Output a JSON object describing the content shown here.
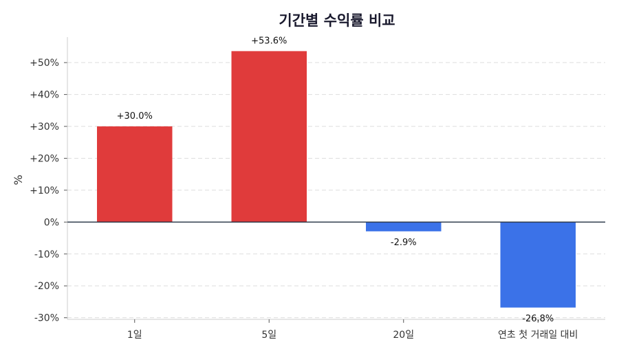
{
  "chart_data": {
    "type": "bar",
    "title": "기간별 수익률 비교",
    "ylabel": "%",
    "xlabel": "",
    "categories": [
      "1일",
      "5일",
      "20일",
      "연초 첫 거래일 대비"
    ],
    "values": [
      30.0,
      53.6,
      -2.9,
      -26.8
    ],
    "data_labels": [
      "+30.0%",
      "+53.6%",
      "-2.9%",
      "-26.8%"
    ],
    "ylim": [
      -30.5,
      58
    ],
    "yticks": [
      -30,
      -20,
      -10,
      0,
      10,
      20,
      30,
      40,
      50
    ],
    "ytick_labels": [
      "-30%",
      "-20%",
      "-10%",
      "0%",
      "+10%",
      "+20%",
      "+30%",
      "+40%",
      "+50%"
    ],
    "grid": true,
    "colors": {
      "positive": "#e03b3b",
      "negative": "#3b72e8",
      "zero_line": "#2d3a4a",
      "axis": "#cccccc"
    }
  }
}
